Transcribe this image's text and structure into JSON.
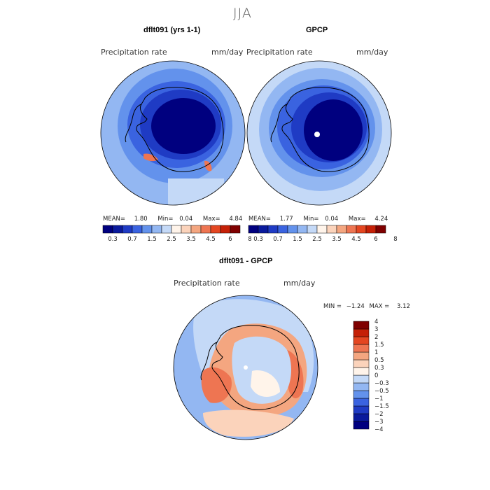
{
  "season": "JJA",
  "panels": [
    {
      "title": "dflt091 (yrs 1-1)",
      "variable": "Precipitation rate",
      "units": "mm/day",
      "stats": {
        "mean_label": "MEAN=",
        "mean": "1.80",
        "min_label": "Min=",
        "min": "0.04",
        "max_label": "Max=",
        "max": "4.84"
      }
    },
    {
      "title": "GPCP",
      "variable": "Precipitation rate",
      "units": "mm/day",
      "stats": {
        "mean_label": "MEAN=",
        "mean": "1.77",
        "min_label": "Min=",
        "min": "0.04",
        "max_label": "Max=",
        "max": "4.24"
      }
    },
    {
      "title": "dflt091 - GPCP",
      "variable": "Precipitation rate",
      "units": "mm/day",
      "stats": {
        "min_label": "MIN =",
        "min": "−1.24",
        "max_label": "MAX =",
        "max": "3.12"
      }
    }
  ],
  "colorbar_abs": {
    "colors": [
      "#00007f",
      "#0a1a9c",
      "#1f3bc4",
      "#3a63e0",
      "#6392ec",
      "#93b7f2",
      "#c4d9f7",
      "#fff4ea",
      "#fbd3bb",
      "#f4a680",
      "#ee7552",
      "#e44621",
      "#c52007",
      "#7f0000"
    ],
    "tick_labels": [
      "0.3",
      "0.7",
      "1.5",
      "2.5",
      "3.5",
      "4.5",
      "6",
      "8"
    ]
  },
  "colorbar_diff": {
    "colors": [
      "#00007f",
      "#0a1a9c",
      "#1f3bc4",
      "#3a63e0",
      "#6392ec",
      "#93b7f2",
      "#c4d9f7",
      "#fff4ea",
      "#fbd3bb",
      "#f4a680",
      "#ee7552",
      "#e44621",
      "#c52007",
      "#7f0000"
    ],
    "tick_labels": [
      "−4",
      "−3",
      "−2",
      "−1.5",
      "−1",
      "−0.5",
      "−0.3",
      "0",
      "0.3",
      "0.5",
      "1",
      "1.5",
      "2",
      "3",
      "4"
    ]
  },
  "palette": {
    "dark_blue": "#00007f",
    "mid_blue": "#3a63e0",
    "light_blue": "#93b7f2",
    "pale": "#fff4ea",
    "orange": "#ee7552",
    "dark_red": "#7f0000"
  }
}
